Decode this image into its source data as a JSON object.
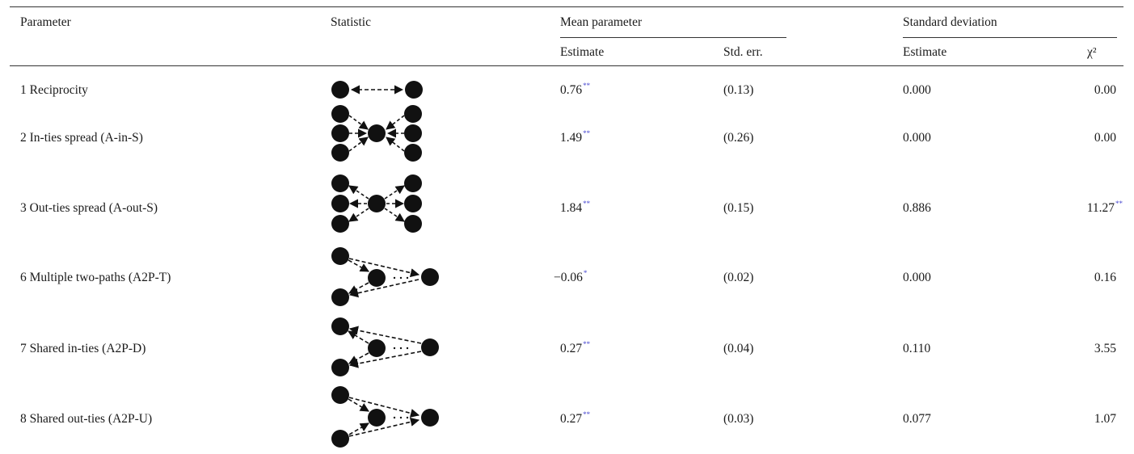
{
  "headers": {
    "parameter": "Parameter",
    "statistic": "Statistic",
    "mean_group": "Mean parameter",
    "sd_group": "Standard deviation",
    "mean_estimate": "Estimate",
    "mean_stderr": "Std. err.",
    "sd_estimate": "Estimate",
    "sd_chi2": "χ²"
  },
  "rows": [
    {
      "parameter": "1 Reciprocity",
      "statistic_icon": "reciprocity-diagram-icon",
      "estimate": "0.76",
      "estimate_sig": "**",
      "stderr": "(0.13)",
      "sd_estimate": "0.000",
      "chi2": "0.00",
      "chi2_sig": ""
    },
    {
      "parameter": "2 In-ties spread (A-in-S)",
      "statistic_icon": "in-star-diagram-icon",
      "estimate": "1.49",
      "estimate_sig": "**",
      "stderr": "(0.26)",
      "sd_estimate": "0.000",
      "chi2": "0.00",
      "chi2_sig": ""
    },
    {
      "parameter": "3 Out-ties spread (A-out-S)",
      "statistic_icon": "out-star-diagram-icon",
      "estimate": "1.84",
      "estimate_sig": "**",
      "stderr": "(0.15)",
      "sd_estimate": "0.886",
      "chi2": "11.27",
      "chi2_sig": "**"
    },
    {
      "parameter": "6 Multiple two-paths (A2P-T)",
      "statistic_icon": "two-path-transitive-diagram-icon",
      "estimate": "−0.06",
      "estimate_sig": "*",
      "stderr": "(0.02)",
      "sd_estimate": "0.000",
      "chi2": "0.16",
      "chi2_sig": ""
    },
    {
      "parameter": "7 Shared in-ties (A2P-D)",
      "statistic_icon": "shared-in-ties-diagram-icon",
      "estimate": "0.27",
      "estimate_sig": "**",
      "stderr": "(0.04)",
      "sd_estimate": "0.110",
      "chi2": "3.55",
      "chi2_sig": ""
    },
    {
      "parameter": "8 Shared out-ties (A2P-U)",
      "statistic_icon": "shared-out-ties-diagram-icon",
      "estimate": "0.27",
      "estimate_sig": "**",
      "stderr": "(0.03)",
      "sd_estimate": "0.077",
      "chi2": "1.07",
      "chi2_sig": ""
    }
  ],
  "colors": {
    "rule": "#333333",
    "node": "#111111",
    "significance_mark": "#4a4ad0"
  }
}
